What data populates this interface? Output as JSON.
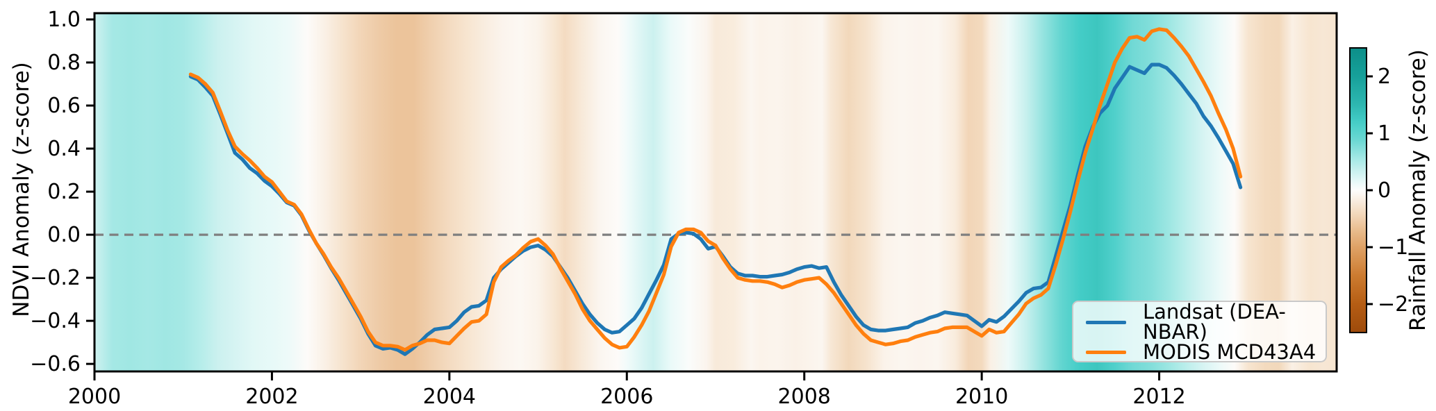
{
  "figure": {
    "background": "#ffffff"
  },
  "labels": {
    "y_axis": "NDVI Anomaly (z-score)",
    "colorbar": "Rainfall Anomaly (z-score)"
  },
  "legend": {
    "items": [
      {
        "label": "Landsat (DEA-NBAR)",
        "color": "#1f77b4"
      },
      {
        "label": "MODIS MCD43A4",
        "color": "#ff7f0e"
      }
    ]
  },
  "chart_data": {
    "type": "line",
    "title": "",
    "xlabel": "",
    "ylabel": "NDVI Anomaly (z-score)",
    "xlim": [
      2000,
      2014
    ],
    "ylim": [
      -0.635,
      1.029
    ],
    "x_ticks": [
      2000,
      2002,
      2004,
      2006,
      2008,
      2010,
      2012
    ],
    "y_ticks": [
      1.0,
      0.8,
      0.6,
      0.4,
      0.2,
      0.0,
      -0.2,
      -0.4,
      -0.6
    ],
    "zero_line": 0,
    "zero_line_color": "#7f7f7f",
    "x_start": 2001.0833,
    "x_step": 0.0833333,
    "series": [
      {
        "name": "Landsat (DEA-NBAR)",
        "color": "#1f77b4",
        "values": [
          0.735,
          0.72,
          0.685,
          0.645,
          0.56,
          0.47,
          0.38,
          0.35,
          0.31,
          0.285,
          0.25,
          0.225,
          0.19,
          0.15,
          0.135,
          0.09,
          0.02,
          -0.04,
          -0.095,
          -0.155,
          -0.21,
          -0.27,
          -0.33,
          -0.39,
          -0.46,
          -0.515,
          -0.53,
          -0.525,
          -0.535,
          -0.555,
          -0.53,
          -0.5,
          -0.465,
          -0.44,
          -0.435,
          -0.43,
          -0.4,
          -0.36,
          -0.335,
          -0.33,
          -0.305,
          -0.2,
          -0.16,
          -0.13,
          -0.1,
          -0.075,
          -0.058,
          -0.05,
          -0.07,
          -0.1,
          -0.15,
          -0.2,
          -0.26,
          -0.32,
          -0.37,
          -0.41,
          -0.44,
          -0.455,
          -0.45,
          -0.42,
          -0.39,
          -0.34,
          -0.275,
          -0.21,
          -0.14,
          -0.02,
          0.005,
          0.01,
          0.005,
          -0.02,
          -0.065,
          -0.055,
          -0.1,
          -0.15,
          -0.18,
          -0.19,
          -0.19,
          -0.195,
          -0.195,
          -0.19,
          -0.185,
          -0.175,
          -0.16,
          -0.15,
          -0.145,
          -0.155,
          -0.15,
          -0.22,
          -0.28,
          -0.33,
          -0.38,
          -0.42,
          -0.44,
          -0.445,
          -0.445,
          -0.44,
          -0.435,
          -0.43,
          -0.41,
          -0.4,
          -0.385,
          -0.375,
          -0.36,
          -0.365,
          -0.37,
          -0.375,
          -0.4,
          -0.425,
          -0.395,
          -0.405,
          -0.38,
          -0.345,
          -0.31,
          -0.27,
          -0.25,
          -0.245,
          -0.22,
          -0.1,
          0.02,
          0.14,
          0.28,
          0.41,
          0.5,
          0.565,
          0.6,
          0.68,
          0.73,
          0.78,
          0.765,
          0.75,
          0.79,
          0.79,
          0.775,
          0.74,
          0.7,
          0.655,
          0.61,
          0.55,
          0.505,
          0.45,
          0.39,
          0.33,
          0.22
        ]
      },
      {
        "name": "MODIS MCD43A4",
        "color": "#ff7f0e",
        "values": [
          0.745,
          0.73,
          0.7,
          0.66,
          0.575,
          0.485,
          0.41,
          0.375,
          0.345,
          0.31,
          0.27,
          0.245,
          0.2,
          0.155,
          0.14,
          0.095,
          0.025,
          -0.04,
          -0.09,
          -0.15,
          -0.2,
          -0.26,
          -0.32,
          -0.38,
          -0.45,
          -0.5,
          -0.515,
          -0.515,
          -0.52,
          -0.535,
          -0.515,
          -0.505,
          -0.49,
          -0.49,
          -0.5,
          -0.505,
          -0.47,
          -0.435,
          -0.405,
          -0.4,
          -0.37,
          -0.22,
          -0.15,
          -0.12,
          -0.095,
          -0.06,
          -0.032,
          -0.02,
          -0.05,
          -0.09,
          -0.155,
          -0.215,
          -0.275,
          -0.345,
          -0.4,
          -0.44,
          -0.48,
          -0.51,
          -0.525,
          -0.52,
          -0.475,
          -0.42,
          -0.355,
          -0.27,
          -0.185,
          -0.055,
          0.01,
          0.025,
          0.025,
          0.01,
          -0.03,
          -0.05,
          -0.11,
          -0.16,
          -0.2,
          -0.21,
          -0.215,
          -0.215,
          -0.22,
          -0.23,
          -0.245,
          -0.235,
          -0.22,
          -0.21,
          -0.205,
          -0.2,
          -0.23,
          -0.27,
          -0.32,
          -0.37,
          -0.42,
          -0.46,
          -0.49,
          -0.5,
          -0.51,
          -0.505,
          -0.495,
          -0.49,
          -0.475,
          -0.465,
          -0.455,
          -0.45,
          -0.435,
          -0.43,
          -0.43,
          -0.43,
          -0.45,
          -0.47,
          -0.44,
          -0.455,
          -0.45,
          -0.41,
          -0.37,
          -0.32,
          -0.295,
          -0.28,
          -0.25,
          -0.14,
          -0.02,
          0.11,
          0.25,
          0.38,
          0.49,
          0.6,
          0.7,
          0.8,
          0.865,
          0.915,
          0.92,
          0.905,
          0.945,
          0.955,
          0.95,
          0.915,
          0.875,
          0.83,
          0.77,
          0.71,
          0.645,
          0.565,
          0.49,
          0.4,
          0.27
        ]
      }
    ],
    "background_heatmap": {
      "label": "Rainfall Anomaly (z-score)",
      "zlim": [
        -2.5,
        2.5
      ],
      "cbar_ticks": [
        2,
        1,
        0,
        -1,
        -2
      ],
      "x": [
        2000.0,
        2000.2,
        2000.4,
        2000.6,
        2000.8,
        2001.0,
        2001.2,
        2001.4,
        2001.6,
        2001.8,
        2002.0,
        2002.2,
        2002.4,
        2002.6,
        2002.8,
        2003.0,
        2003.2,
        2003.4,
        2003.6,
        2003.8,
        2004.0,
        2004.2,
        2004.4,
        2004.6,
        2004.8,
        2005.0,
        2005.2,
        2005.3,
        2005.5,
        2005.7,
        2005.9,
        2006.0,
        2006.2,
        2006.3,
        2006.5,
        2006.7,
        2006.9,
        2007.0,
        2007.2,
        2007.4,
        2007.5,
        2007.7,
        2007.9,
        2008.0,
        2008.2,
        2008.3,
        2008.5,
        2008.7,
        2008.9,
        2009.1,
        2009.3,
        2009.5,
        2009.7,
        2009.85,
        2010.0,
        2010.1,
        2010.3,
        2010.5,
        2010.7,
        2010.9,
        2011.1,
        2011.3,
        2011.5,
        2011.7,
        2011.9,
        2012.1,
        2012.3,
        2012.5,
        2012.7,
        2012.85,
        2013.0,
        2013.2,
        2013.35,
        2013.5,
        2013.7,
        2013.85,
        2014.0
      ],
      "z": [
        0.3,
        0.55,
        0.58,
        0.55,
        0.58,
        0.55,
        0.45,
        0.32,
        0.25,
        0.18,
        0.15,
        0.1,
        -0.02,
        -0.15,
        -0.3,
        -0.45,
        -0.55,
        -0.62,
        -0.62,
        -0.5,
        -0.38,
        -0.28,
        -0.18,
        -0.1,
        -0.06,
        -0.12,
        -0.28,
        -0.38,
        -0.22,
        -0.08,
        -0.02,
        0.08,
        0.25,
        0.32,
        0.12,
        0.02,
        -0.1,
        -0.22,
        -0.2,
        -0.08,
        -0.12,
        -0.1,
        -0.14,
        -0.12,
        -0.08,
        -0.25,
        -0.42,
        -0.3,
        -0.12,
        -0.08,
        -0.1,
        -0.08,
        -0.2,
        -0.45,
        -0.4,
        -0.15,
        0.1,
        0.35,
        0.65,
        0.95,
        1.2,
        1.3,
        1.1,
        0.85,
        0.75,
        0.6,
        0.42,
        0.25,
        0.1,
        -0.02,
        -0.28,
        -0.4,
        -0.42,
        -0.15,
        -0.28,
        -0.25,
        -0.28
      ],
      "colormap": [
        [
          2.5,
          "#0c8e88"
        ],
        [
          2.0,
          "#17a09a"
        ],
        [
          1.5,
          "#2eb7b0"
        ],
        [
          1.2,
          "#44cdc7"
        ],
        [
          0.9,
          "#68d7d2"
        ],
        [
          0.7,
          "#8ae0dc"
        ],
        [
          0.5,
          "#aeebe8"
        ],
        [
          0.3,
          "#cff2f0"
        ],
        [
          0.15,
          "#e7f9f8"
        ],
        [
          0.0,
          "#fdfdfc"
        ],
        [
          -0.15,
          "#faf0e5"
        ],
        [
          -0.3,
          "#f6e3cd"
        ],
        [
          -0.5,
          "#f0d0af"
        ],
        [
          -0.7,
          "#e9bc8e"
        ],
        [
          -1.0,
          "#dfa266"
        ],
        [
          -1.5,
          "#cc7b30"
        ],
        [
          -2.0,
          "#b55d14"
        ],
        [
          -2.5,
          "#9d4a0b"
        ]
      ]
    }
  }
}
